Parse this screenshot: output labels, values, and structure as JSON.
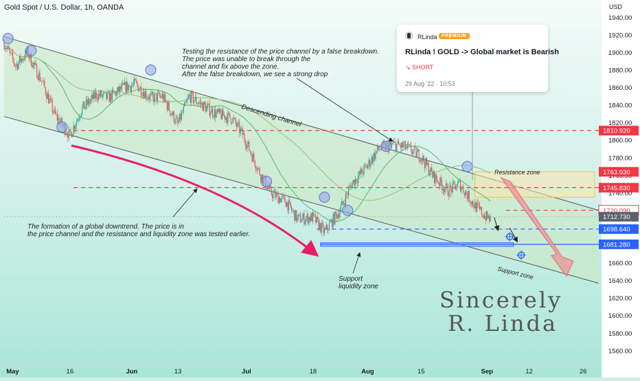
{
  "header": {
    "symbol": "Gold Spot / U.S. Dollar, 1h, OANDA",
    "currency": "USD"
  },
  "post": {
    "author": "RLinda",
    "badge": "PREMIUM",
    "title": "RLinda ! GOLD -> Global market is Bearish",
    "side": "↘ SHORT",
    "date": "29 Aug '22 · 10:53"
  },
  "annotations": {
    "resistance_test": [
      "Testing the resistance of the price channel by a false breakdown.",
      "The price was unable to break through the",
      "channel and fix above the zone.",
      "After the false breakdown, we see a strong drop"
    ],
    "downtrend": [
      "The formation of a global downtrend. The price is in",
      "the price channel and the resistance and liquidity zone was tested earlier."
    ],
    "support_liquidity": [
      "Support",
      "liquidity zone"
    ],
    "descending_channel": "Descending channel",
    "resistance_zone": "Resistance zone",
    "support_zone": "Support zone",
    "signature": [
      "Sincerely",
      "R. Linda"
    ]
  },
  "colors": {
    "background": "#cfeee7",
    "candle_up": "#26a69a",
    "candle_down": "#ef5350",
    "channel_fill": "#c9e8c5",
    "price_level_red": "#f23645",
    "price_level_blue": "#2962ff",
    "resistance_zone": "#f6c344",
    "trend_arrow": "#e91e63",
    "touch_circle": "#8fa6e8"
  },
  "chart_data": {
    "type": "candlestick",
    "x_ticks": [
      "May",
      "16",
      "Jun",
      "13",
      "Jul",
      "18",
      "Aug",
      "15",
      "Sep",
      "12",
      "26"
    ],
    "y_ticks": [
      1560,
      1580,
      1600,
      1620,
      1640,
      1660,
      1680,
      1700,
      1720,
      1740,
      1760,
      1780,
      1800,
      1820,
      1840,
      1860,
      1880,
      1900,
      1920,
      1940
    ],
    "y_range": [
      1545,
      1952
    ],
    "grid": false,
    "price_labels": [
      {
        "value": 1810.92,
        "text": "1810.920",
        "kind": "red"
      },
      {
        "value": 1763.93,
        "text": "1763.930",
        "kind": "red"
      },
      {
        "value": 1745.83,
        "text": "1745.830",
        "kind": "red"
      },
      {
        "value": 1720.09,
        "text": "1720.090",
        "kind": "outline"
      },
      {
        "value": 1712.73,
        "text": "1712.730",
        "kind": "gray"
      },
      {
        "value": 1698.64,
        "text": "1698.640",
        "kind": "blue"
      },
      {
        "value": 1681.28,
        "text": "1681.280",
        "kind": "blue"
      }
    ],
    "levels": [
      {
        "value": 1810.92,
        "style": "red-dashed"
      },
      {
        "value": 1745.83,
        "style": "red-dashed"
      },
      {
        "value": 1720.09,
        "style": "red-dashed-short"
      },
      {
        "value": 1698.64,
        "style": "blue-dashed"
      },
      {
        "value": 1681.28,
        "style": "blue-zone"
      },
      {
        "value": 1712.73,
        "style": "gray-dotted"
      }
    ],
    "price_path": [
      {
        "date": "2022-04-29",
        "price": 1911
      },
      {
        "date": "2022-05-02",
        "price": 1885
      },
      {
        "date": "2022-05-05",
        "price": 1900
      },
      {
        "date": "2022-05-09",
        "price": 1865
      },
      {
        "date": "2022-05-12",
        "price": 1830
      },
      {
        "date": "2022-05-16",
        "price": 1805
      },
      {
        "date": "2022-05-19",
        "price": 1835
      },
      {
        "date": "2022-05-23",
        "price": 1852
      },
      {
        "date": "2022-05-26",
        "price": 1848
      },
      {
        "date": "2022-05-30",
        "price": 1860
      },
      {
        "date": "2022-06-02",
        "price": 1864
      },
      {
        "date": "2022-06-06",
        "price": 1848
      },
      {
        "date": "2022-06-09",
        "price": 1850
      },
      {
        "date": "2022-06-13",
        "price": 1818
      },
      {
        "date": "2022-06-16",
        "price": 1850
      },
      {
        "date": "2022-06-20",
        "price": 1838
      },
      {
        "date": "2022-06-23",
        "price": 1830
      },
      {
        "date": "2022-06-27",
        "price": 1825
      },
      {
        "date": "2022-06-30",
        "price": 1805
      },
      {
        "date": "2022-07-04",
        "price": 1765
      },
      {
        "date": "2022-07-07",
        "price": 1740
      },
      {
        "date": "2022-07-11",
        "price": 1730
      },
      {
        "date": "2022-07-14",
        "price": 1710
      },
      {
        "date": "2022-07-18",
        "price": 1712
      },
      {
        "date": "2022-07-21",
        "price": 1695
      },
      {
        "date": "2022-07-25",
        "price": 1720
      },
      {
        "date": "2022-07-28",
        "price": 1750
      },
      {
        "date": "2022-08-01",
        "price": 1770
      },
      {
        "date": "2022-08-04",
        "price": 1790
      },
      {
        "date": "2022-08-08",
        "price": 1795
      },
      {
        "date": "2022-08-11",
        "price": 1792
      },
      {
        "date": "2022-08-15",
        "price": 1782
      },
      {
        "date": "2022-08-18",
        "price": 1760
      },
      {
        "date": "2022-08-22",
        "price": 1742
      },
      {
        "date": "2022-08-25",
        "price": 1750
      },
      {
        "date": "2022-08-29",
        "price": 1725
      },
      {
        "date": "2022-09-01",
        "price": 1712
      },
      {
        "date": "2022-09-02",
        "price": 1710
      }
    ],
    "channel": {
      "upper": [
        {
          "date": "2022-04-29",
          "price": 1918
        },
        {
          "date": "2022-09-30",
          "price": 1720
        }
      ],
      "lower": [
        {
          "date": "2022-04-29",
          "price": 1827
        },
        {
          "date": "2022-09-30",
          "price": 1637
        }
      ]
    },
    "resistance_zone": {
      "from": "2022-08-29",
      "to": "2022-09-29",
      "top": 1763.93,
      "bottom": 1735
    },
    "support_liquidity_zone": {
      "from": "2022-07-20",
      "to": "2022-09-08",
      "top": 1683,
      "bottom": 1679
    },
    "forecast_arrow": {
      "from": {
        "date": "2022-09-06",
        "price": 1755
      },
      "to": {
        "date": "2022-09-21",
        "price": 1645
      }
    }
  }
}
